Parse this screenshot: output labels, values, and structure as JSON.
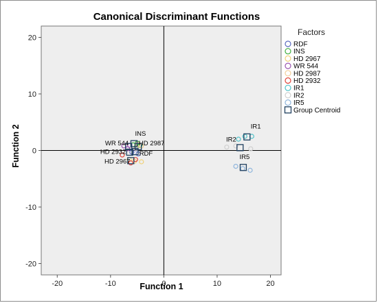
{
  "chart_data": {
    "type": "scatter",
    "title": "Canonical Discriminant Functions",
    "xlabel": "Function 1",
    "ylabel": "Function 2",
    "xlim": [
      -23,
      22
    ],
    "ylim": [
      -22,
      22
    ],
    "xticks": [
      -20,
      -10,
      0,
      10,
      20
    ],
    "yticks": [
      -20,
      -10,
      0,
      10,
      20
    ],
    "background": "#eeeeee",
    "legend": {
      "title": "Factors",
      "position": "right",
      "entries": [
        {
          "label": "RDF",
          "color": "#5a6bbf",
          "marker": "circle"
        },
        {
          "label": "INS",
          "color": "#3fae3f",
          "marker": "circle"
        },
        {
          "label": "HD 2967",
          "color": "#f0d27a",
          "marker": "circle"
        },
        {
          "label": "WR 544",
          "color": "#9a55b0",
          "marker": "circle"
        },
        {
          "label": "HD 2987",
          "color": "#f2cf9a",
          "marker": "circle"
        },
        {
          "label": "HD 2932",
          "color": "#e0443a",
          "marker": "circle"
        },
        {
          "label": "IR1",
          "color": "#4fc1c8",
          "marker": "circle"
        },
        {
          "label": "IR2",
          "color": "#d0d0d0",
          "marker": "circle"
        },
        {
          "label": "IR5",
          "color": "#8fb5dc",
          "marker": "circle"
        },
        {
          "label": "Group Centroid",
          "color": "#1f3f5f",
          "marker": "square"
        }
      ]
    },
    "series": [
      {
        "name": "RDF",
        "color": "#5a6bbf",
        "points": [
          [
            -6.0,
            -0.3
          ],
          [
            -5.2,
            0.3
          ],
          [
            -4.8,
            -0.6
          ]
        ]
      },
      {
        "name": "INS",
        "color": "#3fae3f",
        "points": [
          [
            -5.8,
            1.0
          ],
          [
            -5.0,
            1.3
          ],
          [
            -4.5,
            0.9
          ]
        ]
      },
      {
        "name": "HD 2967",
        "color": "#f0d27a",
        "points": [
          [
            -6.5,
            -1.6
          ],
          [
            -5.5,
            -1.9
          ],
          [
            -4.2,
            -2.0
          ]
        ]
      },
      {
        "name": "WR 544",
        "color": "#9a55b0",
        "points": [
          [
            -7.5,
            0.8
          ],
          [
            -6.8,
            0.3
          ],
          [
            -6.4,
            0.9
          ]
        ]
      },
      {
        "name": "HD 2987",
        "color": "#f2cf9a",
        "points": [
          [
            -5.2,
            0.4
          ],
          [
            -4.2,
            0.8
          ],
          [
            -4.9,
            1.1
          ]
        ]
      },
      {
        "name": "HD 2932",
        "color": "#e0443a",
        "points": [
          [
            -7.8,
            -0.8
          ],
          [
            -6.2,
            -2.2
          ],
          [
            -5.3,
            -1.6
          ]
        ]
      },
      {
        "name": "IR1",
        "color": "#4fc1c8",
        "points": [
          [
            14.0,
            2.0
          ],
          [
            15.2,
            2.5
          ],
          [
            16.5,
            2.5
          ]
        ]
      },
      {
        "name": "IR2",
        "color": "#d0d0d0",
        "points": [
          [
            11.8,
            0.6
          ],
          [
            13.5,
            0.8
          ],
          [
            16.3,
            0.3
          ]
        ]
      },
      {
        "name": "IR5",
        "color": "#8fb5dc",
        "points": [
          [
            13.5,
            -2.8
          ],
          [
            14.8,
            -3.2
          ],
          [
            16.2,
            -3.5
          ]
        ]
      }
    ],
    "centroids": [
      {
        "label": "RDF",
        "x": -5.4,
        "y": -0.2
      },
      {
        "label": "INS",
        "x": -5.6,
        "y": 1.2
      },
      {
        "label": "HD 2967",
        "x": -6.2,
        "y": -1.8
      },
      {
        "label": "WR 544",
        "x": -6.6,
        "y": 0.7
      },
      {
        "label": "HD 2987",
        "x": -4.8,
        "y": 0.7
      },
      {
        "label": "HD 2932",
        "x": -6.4,
        "y": -0.3
      },
      {
        "label": "IR1",
        "x": 15.6,
        "y": 2.4
      },
      {
        "label": "IR2",
        "x": 14.3,
        "y": 0.5
      },
      {
        "label": "IR5",
        "x": 14.9,
        "y": -3.0
      }
    ],
    "centroid_color": "#1f3f5f",
    "point_labels": [
      {
        "text": "INS",
        "x": -5.4,
        "y": 2.6,
        "anchor": "start"
      },
      {
        "text": "WR 544",
        "x": -6.6,
        "y": 0.9,
        "anchor": "end"
      },
      {
        "text": "HD 2987",
        "x": -4.7,
        "y": 0.9,
        "anchor": "start"
      },
      {
        "text": "HD 2932",
        "x": -7.1,
        "y": -0.6,
        "anchor": "end"
      },
      {
        "text": "RDF",
        "x": -4.6,
        "y": -0.9,
        "anchor": "start"
      },
      {
        "text": "HD 2967",
        "x": -6.3,
        "y": -2.3,
        "anchor": "end"
      },
      {
        "text": "IR1",
        "x": 16.3,
        "y": 3.9,
        "anchor": "start"
      },
      {
        "text": "IR2",
        "x": 13.6,
        "y": 1.6,
        "anchor": "end"
      },
      {
        "text": "IR5",
        "x": 14.2,
        "y": -1.5,
        "anchor": "start"
      }
    ]
  }
}
